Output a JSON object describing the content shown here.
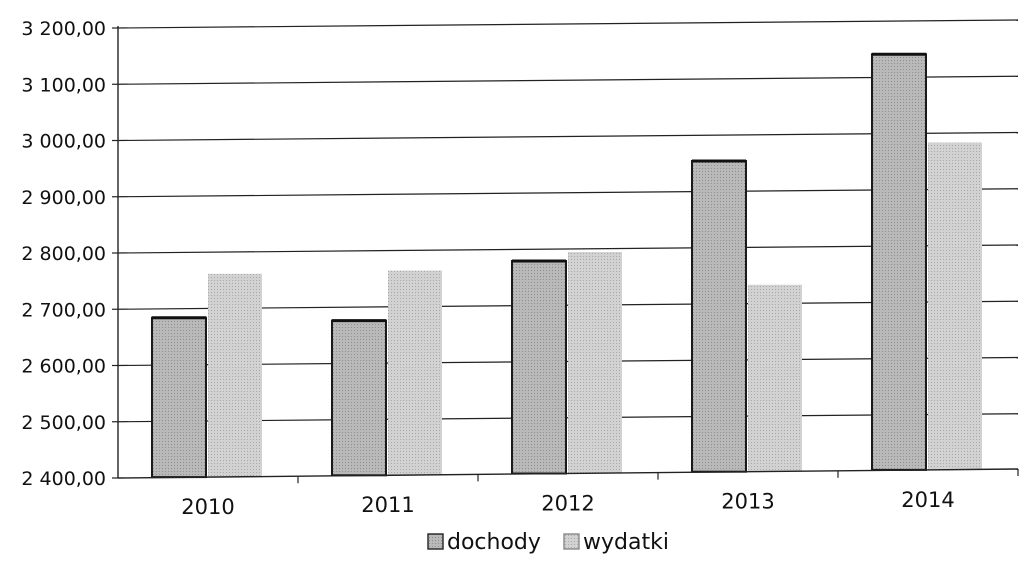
{
  "chart_data": {
    "type": "bar",
    "categories": [
      "2010",
      "2011",
      "2012",
      "2013",
      "2014"
    ],
    "series": [
      {
        "name": "dochody",
        "values": [
          2685,
          2677,
          2780,
          2955,
          3142
        ]
      },
      {
        "name": "wydatki",
        "values": [
          2763,
          2766,
          2796,
          2735,
          2985
        ]
      }
    ],
    "title": "",
    "xlabel": "",
    "ylabel": "",
    "ylim": [
      2400,
      3200
    ],
    "yticks": [
      "2 400,00",
      "2 500,00",
      "2 600,00",
      "2 700,00",
      "2 800,00",
      "2 900,00",
      "3 000,00",
      "3 100,00",
      "3 200,00"
    ],
    "grid": true,
    "legend": "bottom",
    "colors": {
      "dochody": "#bdbdbd",
      "wydatki": "#cfcfcf"
    }
  }
}
